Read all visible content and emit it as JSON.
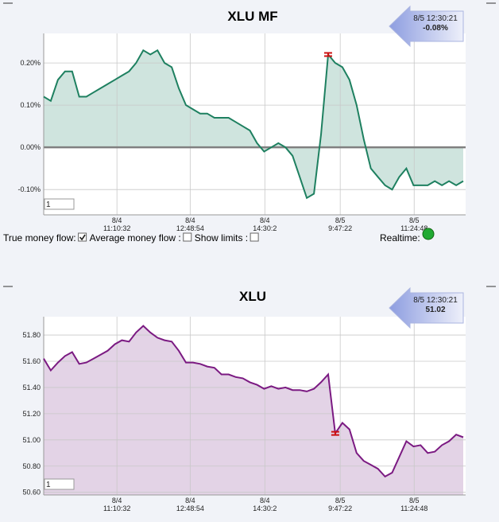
{
  "chart_data": [
    {
      "type": "area",
      "title": "XLU MF",
      "color": "#1e8060",
      "fill_color": "#cfe4de",
      "baseline": 0,
      "zero_line": true,
      "values": [
        0.12,
        0.11,
        0.16,
        0.18,
        0.18,
        0.12,
        0.12,
        0.13,
        0.14,
        0.15,
        0.16,
        0.17,
        0.18,
        0.2,
        0.23,
        0.22,
        0.23,
        0.2,
        0.19,
        0.14,
        0.1,
        0.09,
        0.08,
        0.08,
        0.07,
        0.07,
        0.07,
        0.06,
        0.05,
        0.04,
        0.01,
        -0.01,
        0.0,
        0.01,
        0.0,
        -0.02,
        -0.07,
        -0.12,
        -0.11,
        0.03,
        0.22,
        0.2,
        0.19,
        0.16,
        0.1,
        0.02,
        -0.05,
        -0.07,
        -0.09,
        -0.1,
        -0.07,
        -0.05,
        -0.09,
        -0.09,
        -0.09,
        -0.08,
        -0.09,
        -0.08,
        -0.09,
        -0.08
      ],
      "marker_index": 40,
      "xlim": [
        0,
        59
      ],
      "xticks": [
        {
          "value": 10.3,
          "label": "8/4\n11:10:32"
        },
        {
          "value": 20.6,
          "label": "8/4\n12:48:54"
        },
        {
          "value": 31.1,
          "label": "8/4\n14:30:2"
        },
        {
          "value": 41.7,
          "label": "8/5\n9:47:22"
        },
        {
          "value": 52.1,
          "label": "8/5\n11:24:48"
        }
      ],
      "ylim": [
        -0.16,
        0.27
      ],
      "yticks": [
        {
          "value": -0.1,
          "label": "-0.10%"
        },
        {
          "value": 0,
          "label": "0.00%"
        },
        {
          "value": 0.1,
          "label": "0.10%"
        },
        {
          "value": 0.2,
          "label": "0.20%"
        }
      ],
      "grid": true,
      "input": "1",
      "callout": {
        "time": "8/5 12:30:21",
        "value": "-0.08%"
      }
    },
    {
      "type": "area",
      "title": "XLU",
      "color": "#7b1a82",
      "fill_color": "#e3d3e6",
      "zero_line": false,
      "values": [
        51.62,
        51.53,
        51.59,
        51.64,
        51.67,
        51.58,
        51.59,
        51.62,
        51.65,
        51.68,
        51.73,
        51.76,
        51.75,
        51.82,
        51.87,
        51.82,
        51.78,
        51.76,
        51.75,
        51.68,
        51.59,
        51.59,
        51.58,
        51.56,
        51.55,
        51.5,
        51.5,
        51.48,
        51.47,
        51.44,
        51.42,
        51.39,
        51.41,
        51.39,
        51.4,
        51.38,
        51.38,
        51.37,
        51.39,
        51.44,
        51.5,
        51.05,
        51.13,
        51.08,
        50.9,
        50.84,
        50.81,
        50.78,
        50.72,
        50.75,
        50.87,
        50.99,
        50.95,
        50.96,
        50.9,
        50.91,
        50.96,
        50.99,
        51.04,
        51.02
      ],
      "marker_index": 41,
      "xlim": [
        0,
        59
      ],
      "xticks": [
        {
          "value": 10.3,
          "label": "8/4\n11:10:32"
        },
        {
          "value": 20.6,
          "label": "8/4\n12:48:54"
        },
        {
          "value": 31.1,
          "label": "8/4\n14:30:2"
        },
        {
          "value": 41.7,
          "label": "8/5\n9:47:22"
        },
        {
          "value": 52.1,
          "label": "8/5\n11:24:48"
        }
      ],
      "ylim": [
        50.58,
        51.94
      ],
      "yticks": [
        {
          "value": 50.6,
          "label": "50.60"
        },
        {
          "value": 50.8,
          "label": "50.80"
        },
        {
          "value": 51,
          "label": "51.00"
        },
        {
          "value": 51.2,
          "label": "51.20"
        },
        {
          "value": 51.4,
          "label": "51.40"
        },
        {
          "value": 51.6,
          "label": "51.60"
        },
        {
          "value": 51.8,
          "label": "51.80"
        }
      ],
      "grid": true,
      "input": "1",
      "callout": {
        "time": "8/5 12:30:21",
        "value": "51.02"
      }
    }
  ],
  "controls": [
    {
      "label": "True money flow:",
      "checked": true
    },
    {
      "label": "Average money flow :",
      "checked": false
    },
    {
      "label": "Show limits :",
      "checked": false
    }
  ],
  "realtime": {
    "label": "Realtime:",
    "color": "#22aa33"
  }
}
